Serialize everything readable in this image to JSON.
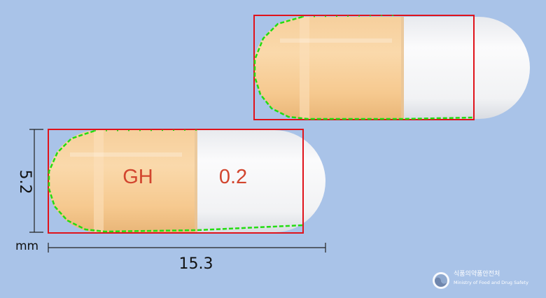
{
  "imprint": {
    "left_text": "GH",
    "right_text": "0.2"
  },
  "dimensions": {
    "height": "5.2",
    "unit": "mm",
    "length": "15.3"
  },
  "watermark": {
    "name_ko": "식품의약품안전처",
    "name_en": "Ministry of Food and Drug Safety"
  },
  "colors": {
    "background": "#a9c3e8",
    "capsule_body": "#f8cc96",
    "capsule_cap": "#f3f4f5",
    "imprint": "#d2452e",
    "bbox": "#e0131b",
    "contour": "#22dd11"
  }
}
